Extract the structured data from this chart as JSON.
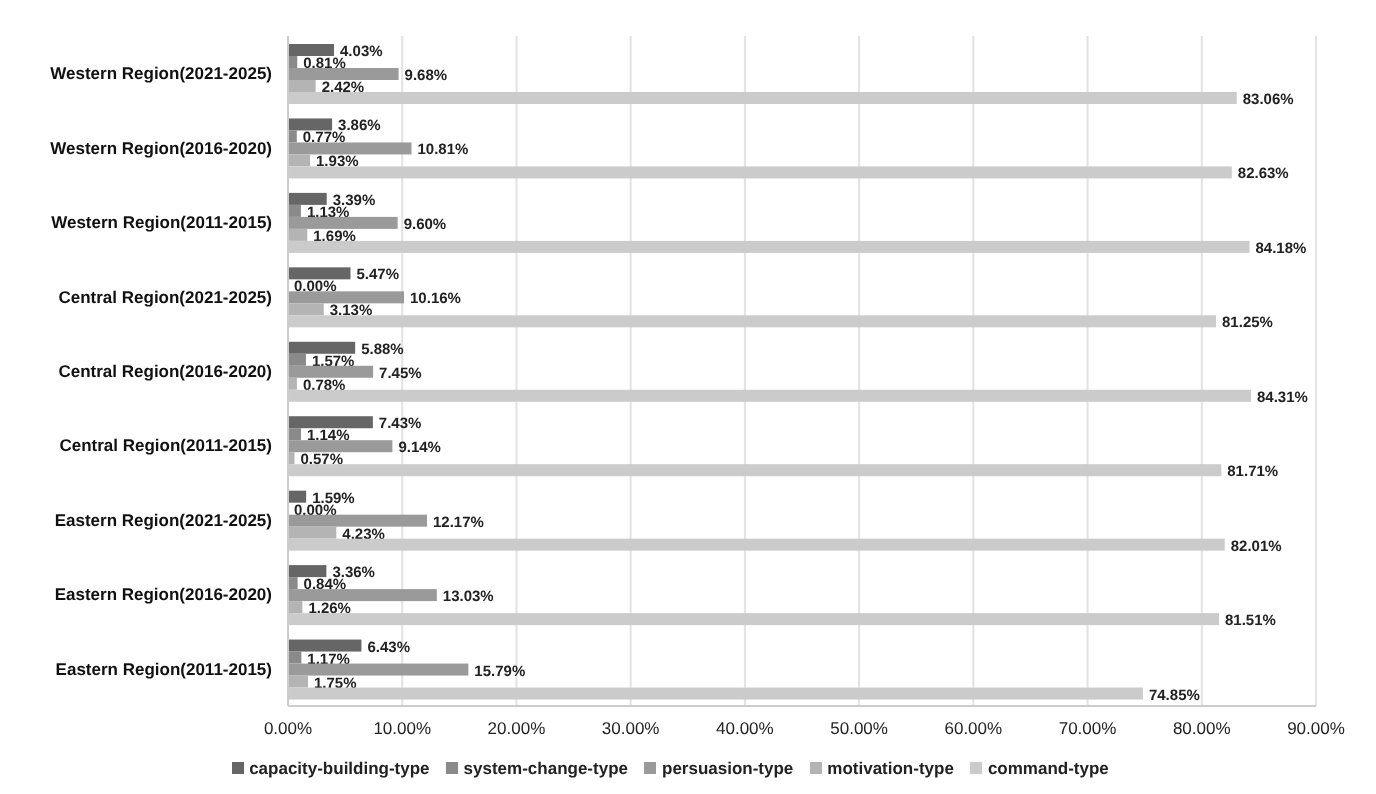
{
  "chart_data": {
    "type": "bar",
    "orientation": "horizontal",
    "categories": [
      "Western Region(2021-2025)",
      "Western Region(2016-2020)",
      "Western Region(2011-2015)",
      "Central Region(2021-2025)",
      "Central Region(2016-2020)",
      "Central Region(2011-2015)",
      "Eastern Region(2021-2025)",
      "Eastern Region(2016-2020)",
      "Eastern Region(2011-2015)"
    ],
    "series": [
      {
        "name": "capacity-building-type",
        "color": "#666666",
        "values": [
          4.03,
          3.86,
          3.39,
          5.47,
          5.88,
          7.43,
          1.59,
          3.36,
          6.43
        ],
        "value_labels": [
          "4.03%",
          "3.86%",
          "3.39%",
          "5.47%",
          "5.88%",
          "7.43%",
          "1.59%",
          "3.36%",
          "6.43%"
        ]
      },
      {
        "name": "system-change-type",
        "color": "#8a8a8a",
        "values": [
          0.81,
          0.77,
          1.13,
          0,
          1.57,
          1.14,
          0,
          0.84,
          1.17
        ],
        "value_labels": [
          "0.81%",
          "0.77%",
          "1.13%",
          "0.00%",
          "1.57%",
          "1.14%",
          "0.00%",
          "0.84%",
          "1.17%"
        ]
      },
      {
        "name": "persuasion-type",
        "color": "#9a9a9a",
        "values": [
          9.68,
          10.81,
          9.6,
          10.16,
          7.45,
          9.14,
          12.17,
          13.03,
          15.79
        ],
        "value_labels": [
          "9.68%",
          "10.81%",
          "9.60%",
          "10.16%",
          "7.45%",
          "9.14%",
          "12.17%",
          "13.03%",
          "15.79%"
        ]
      },
      {
        "name": "motivation-type",
        "color": "#b4b4b4",
        "values": [
          2.42,
          1.93,
          1.69,
          3.13,
          0.78,
          0.57,
          4.23,
          1.26,
          1.75
        ],
        "value_labels": [
          "2.42%",
          "1.93%",
          "1.69%",
          "3.13%",
          "0.78%",
          "0.57%",
          "4.23%",
          "1.26%",
          "1.75%"
        ]
      },
      {
        "name": "command-type",
        "color": "#cbcbcb",
        "values": [
          83.06,
          82.63,
          84.18,
          81.25,
          84.31,
          81.71,
          82.01,
          81.51,
          74.85
        ],
        "value_labels": [
          "83.06%",
          "82.63%",
          "84.18%",
          "81.25%",
          "84.31%",
          "81.71%",
          "82.01%",
          "81.51%",
          "74.85%"
        ]
      }
    ],
    "xlim": [
      0,
      90
    ],
    "xticks": [
      {
        "value": 0,
        "label": "0.00%"
      },
      {
        "value": 10,
        "label": "10.00%"
      },
      {
        "value": 20,
        "label": "20.00%"
      },
      {
        "value": 30,
        "label": "30.00%"
      },
      {
        "value": 40,
        "label": "40.00%"
      },
      {
        "value": 50,
        "label": "50.00%"
      },
      {
        "value": 60,
        "label": "60.00%"
      },
      {
        "value": 70,
        "label": "70.00%"
      },
      {
        "value": 80,
        "label": "80.00%"
      },
      {
        "value": 90,
        "label": "90.00%"
      }
    ],
    "grid": "x",
    "legend": "bottom"
  }
}
